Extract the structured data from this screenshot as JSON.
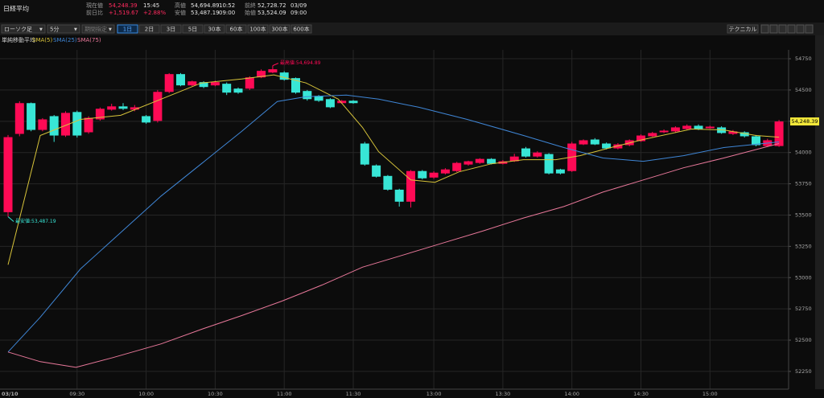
{
  "header": {
    "title": "日経平均",
    "fields": [
      {
        "label": "現在値",
        "value": "54,248.39",
        "extra": "15:45"
      },
      {
        "label": "前日比",
        "value": "+1,519.67",
        "extra": "+2.88%"
      },
      {
        "label": "高値",
        "value": "54,694.89",
        "extra": "10:52"
      },
      {
        "label": "安値",
        "value": "53,487.19",
        "extra": "09:00"
      },
      {
        "label": "前終",
        "value": "52,728.72",
        "extra": "03/09"
      },
      {
        "label": "始値",
        "value": "53,524.09",
        "extra": "09:00"
      }
    ]
  },
  "toolbar": {
    "selects": [
      "ローソク足",
      "5分",
      "期間指定"
    ],
    "periods": [
      "1日",
      "2日",
      "3日",
      "5日",
      "30本",
      "60本",
      "100本",
      "300本",
      "600本"
    ],
    "technical": "テクニカル"
  },
  "chart_data": {
    "type": "candlestick",
    "legend_title": "単純移動平均",
    "up_color": "#ff0a55",
    "down_color": "#38e6d6",
    "categories": [
      "03/10",
      null,
      null,
      null,
      null,
      null,
      "09:30",
      null,
      null,
      null,
      null,
      null,
      "10:00",
      null,
      null,
      null,
      null,
      null,
      "10:30",
      null,
      null,
      null,
      null,
      null,
      "11:00",
      null,
      null,
      null,
      null,
      null,
      "11:30",
      null,
      null,
      null,
      null,
      null,
      null,
      "13:00",
      null,
      null,
      null,
      null,
      null,
      "13:30",
      null,
      null,
      null,
      null,
      null,
      "14:00",
      null,
      null,
      null,
      null,
      null,
      "14:30",
      null,
      null,
      null,
      null,
      null,
      "15:00",
      null,
      null,
      null,
      null,
      null,
      null
    ],
    "open": [
      53523,
      54149,
      54395,
      54181,
      54291,
      54136,
      54324,
      54162,
      54265,
      54343,
      54369,
      54343,
      54291,
      54253,
      54485,
      54627,
      54537,
      54563,
      54537,
      54550,
      54511,
      54511,
      54601,
      54640,
      54640,
      54595,
      54492,
      54453,
      54427,
      54395,
      54414,
      54072,
      53897,
      53813,
      53703,
      53607,
      53852,
      53800,
      53833,
      53852,
      53904,
      53917,
      53949,
      53910,
      53930,
      54033,
      53968,
      53988,
      53865,
      53852,
      54065,
      54104,
      54072,
      54033,
      54059,
      54091,
      54130,
      54162,
      54169,
      54188,
      54214,
      54194,
      54201,
      54149,
      54162,
      54130,
      54052,
      54052
    ],
    "high": [
      54140,
      54410,
      54400,
      54275,
      54300,
      54330,
      54335,
      54290,
      54360,
      54390,
      54395,
      54380,
      54300,
      54500,
      54635,
      54635,
      54575,
      54570,
      54575,
      54560,
      54520,
      54610,
      54665,
      54694.89,
      54650,
      54600,
      54500,
      54460,
      54435,
      54420,
      54420,
      54085,
      53905,
      53820,
      53710,
      53860,
      53860,
      53850,
      53875,
      53925,
      53935,
      53955,
      53955,
      53940,
      53990,
      54045,
      54010,
      53995,
      53870,
      54085,
      54105,
      54115,
      54080,
      54075,
      54105,
      54145,
      54165,
      54185,
      54210,
      54225,
      54225,
      54215,
      54210,
      54180,
      54170,
      54140,
      54110,
      54260
    ],
    "low": [
      53487.19,
      54130,
      54170,
      54170,
      54085,
      54125,
      54120,
      54150,
      54255,
      54335,
      54340,
      54330,
      54230,
      54240,
      54475,
      54530,
      54530,
      54515,
      54530,
      54460,
      54470,
      54500,
      54595,
      54635,
      54575,
      54470,
      54415,
      54405,
      54355,
      54390,
      54390,
      53895,
      53800,
      53695,
      53568,
      53560,
      53785,
      53790,
      53825,
      53845,
      53895,
      53910,
      53905,
      53905,
      53925,
      53960,
      53960,
      53825,
      53825,
      53845,
      54060,
      54060,
      54025,
      54025,
      54050,
      54085,
      54125,
      54155,
      54160,
      54180,
      54180,
      54190,
      54150,
      54140,
      54120,
      54050,
      54045,
      54045
    ],
    "close": [
      54123,
      54395,
      54181,
      54265,
      54136,
      54317,
      54136,
      54278,
      54350,
      54369,
      54350,
      54362,
      54240,
      54485,
      54627,
      54537,
      54569,
      54524,
      54563,
      54479,
      54479,
      54601,
      54653,
      54666,
      54582,
      54479,
      54427,
      54414,
      54362,
      54414,
      54395,
      53904,
      53807,
      53703,
      53607,
      53852,
      53794,
      53839,
      53865,
      53917,
      53930,
      53949,
      53910,
      53930,
      53968,
      53968,
      54000,
      53833,
      53833,
      54072,
      54098,
      54065,
      54033,
      54065,
      54098,
      54136,
      54156,
      54175,
      54201,
      54214,
      54188,
      54207,
      54156,
      54169,
      54130,
      54059,
      54098,
      54248.39
    ],
    "series": [
      {
        "name": "SMA(5)",
        "color": "#d8c43a",
        "x": [
          0,
          2.8,
          6.3,
          9.8,
          13.3,
          16.8,
          20.3,
          23.1,
          25.9,
          28.7,
          30.8,
          32.2,
          35,
          37.1,
          39.2,
          42,
          44.8,
          47.6,
          49.7,
          52.4,
          55.2,
          59.4,
          62.2,
          65,
          67
        ],
        "values": [
          53103,
          54136,
          54265,
          54298,
          54427,
          54556,
          54588,
          54621,
          54556,
          54427,
          54201,
          54007,
          53781,
          53762,
          53846,
          53910,
          53943,
          53943,
          53975,
          54040,
          54104,
          54188,
          54181,
          54136,
          54123
        ]
      },
      {
        "name": "SMA(25)",
        "color": "#3f86d6",
        "x": [
          0,
          2.8,
          6.3,
          9.8,
          13.3,
          16.8,
          20.3,
          23.4,
          25.9,
          29.4,
          32.2,
          35.7,
          39.9,
          44.8,
          48.3,
          51.7,
          55.2,
          58.7,
          62.2,
          67
        ],
        "values": [
          52405,
          52683,
          53070,
          53361,
          53652,
          53910,
          54169,
          54408,
          54446,
          54459,
          54427,
          54362,
          54265,
          54136,
          54040,
          53956,
          53930,
          53975,
          54040,
          54085
        ]
      },
      {
        "name": "SMA(75)",
        "color": "#e8789a",
        "x": [
          0,
          2.8,
          5.9,
          9.1,
          13.3,
          16.8,
          20.3,
          23.8,
          27.3,
          30.8,
          34.3,
          37.8,
          41.3,
          44.8,
          48.3,
          51.7,
          55.2,
          58.7,
          62.2,
          67
        ],
        "values": [
          52405,
          52328,
          52282,
          52360,
          52470,
          52586,
          52696,
          52812,
          52941,
          53083,
          53180,
          53277,
          53374,
          53477,
          53568,
          53684,
          53781,
          53878,
          53956,
          54072
        ]
      }
    ],
    "ylim": [
      52108,
      54821
    ],
    "yticks": [
      52250,
      52500,
      52750,
      53000,
      53250,
      53500,
      53750,
      54000,
      54250,
      54500,
      54750
    ],
    "annotations": [
      {
        "text": "最高値:54,694.89",
        "candle": 23,
        "at": "high"
      },
      {
        "text": "最安値:53,487.19",
        "candle": 0,
        "at": "low"
      }
    ],
    "last_price_label": "54,248.39",
    "grid": true
  }
}
